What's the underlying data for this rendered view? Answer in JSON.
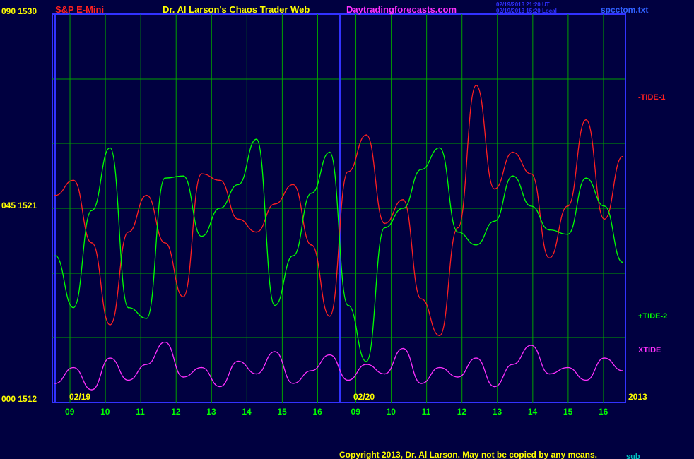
{
  "header": {
    "instrument": "S&P E-Mini",
    "title": "Dr. Al Larson's Chaos Trader Web",
    "website": "Daytradingforecasts.com",
    "timestamp_ut": "02/19/2013 21:20 UT",
    "timestamp_local": "02/19/2013 15:20 Local",
    "filename": "spcctom.txt"
  },
  "footer": {
    "copyright": "Copyright 2013, Dr. Al Larson. May not be copied by any means.",
    "overlay": "sub"
  },
  "colors": {
    "background": "#000040",
    "plot_frame": "#3232ff",
    "grid": "#00a000",
    "tide1": "#ff2020",
    "tide2": "#00ff00",
    "xtide": "#ff30ff",
    "tick_labels": "#00ff00",
    "axis_text": "#ffff00",
    "instrument_text": "#ff2020",
    "website_text": "#ff30ff",
    "timestamp_text": "#3030ff",
    "filename_text": "#3060ff"
  },
  "chart_data": {
    "type": "line",
    "title": "Dr. Al Larson's Chaos Trader Web",
    "y_axis_labels": [
      {
        "value": 1530,
        "text": "090  1530"
      },
      {
        "value": 1521,
        "text": "045  1521"
      },
      {
        "value": 1512,
        "text": "000  1512"
      }
    ],
    "ylim": [
      1512,
      1530
    ],
    "x_ticks": [
      "09",
      "10",
      "11",
      "12",
      "13",
      "14",
      "15",
      "16",
      "09",
      "10",
      "11",
      "12",
      "13",
      "14",
      "15",
      "16"
    ],
    "date_labels": [
      {
        "text": "02/19",
        "after_tick": 0
      },
      {
        "text": "02/20",
        "after_tick": 8
      }
    ],
    "year_label": "2013",
    "grid": true,
    "series": [
      {
        "name": "-TIDE-1",
        "values": [
          1521.6,
          1522.3,
          1519.4,
          1515.6,
          1519.9,
          1521.6,
          1519.4,
          1516.9,
          1522.6,
          1522.3,
          1520.5,
          1519.9,
          1521.2,
          1522.1,
          1519.3,
          1516.0,
          1522.7,
          1524.4,
          1520.3,
          1521.4,
          1516.8,
          1515.1,
          1520.1,
          1526.7,
          1521.9,
          1523.6,
          1522.6,
          1518.7,
          1521.1,
          1525.1,
          1520.5,
          1523.4
        ]
      },
      {
        "name": "+TIDE-2",
        "values": [
          1518.8,
          1516.4,
          1520.9,
          1523.8,
          1516.4,
          1515.9,
          1522.4,
          1522.5,
          1519.7,
          1521.0,
          1522.1,
          1524.2,
          1516.5,
          1518.8,
          1521.7,
          1523.6,
          1516.5,
          1513.9,
          1520.1,
          1521.0,
          1522.8,
          1523.8,
          1519.9,
          1519.3,
          1520.4,
          1522.5,
          1521.1,
          1520.0,
          1519.8,
          1522.4,
          1521.1,
          1518.5
        ]
      },
      {
        "name": "XTIDE",
        "values": [
          0.3,
          0.55,
          0.2,
          0.7,
          0.35,
          0.6,
          0.95,
          0.4,
          0.55,
          0.25,
          0.65,
          0.45,
          0.8,
          0.3,
          0.5,
          0.75,
          0.35,
          0.6,
          0.45,
          0.85,
          0.3,
          0.55,
          0.4,
          0.7,
          0.25,
          0.6,
          0.9,
          0.45,
          0.55,
          0.35,
          0.7,
          0.5
        ]
      }
    ]
  }
}
